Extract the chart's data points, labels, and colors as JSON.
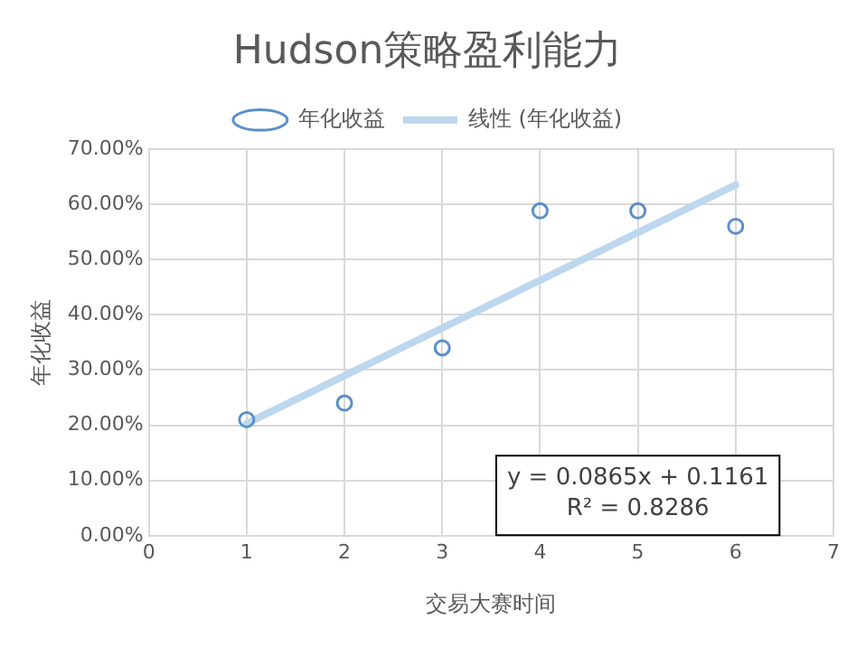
{
  "chart_data": {
    "type": "scatter",
    "title": "Hudson策略盈利能力",
    "xlabel": "交易大赛时间",
    "ylabel": "年化收益",
    "x": [
      1,
      2,
      3,
      4,
      5,
      6
    ],
    "series": [
      {
        "name": "年化收益",
        "color": "#5b8fc7",
        "marker": "circle",
        "values": [
          21.0,
          24.0,
          34.0,
          58.8,
          58.8,
          56.0
        ]
      },
      {
        "name": "线性 (年化收益)",
        "type": "line",
        "color": "#bdd7ee",
        "marker": "none",
        "x": [
          1,
          6
        ],
        "values": [
          20.3,
          63.5
        ]
      }
    ],
    "xlim": [
      0,
      7
    ],
    "xticks": [
      0,
      1,
      2,
      3,
      4,
      5,
      6,
      7
    ],
    "ylim": [
      0,
      70
    ],
    "yticks": [
      {
        "value": 0,
        "label": "0.00%"
      },
      {
        "value": 10,
        "label": "10.00%"
      },
      {
        "value": 20,
        "label": "20.00%"
      },
      {
        "value": 30,
        "label": "30.00%"
      },
      {
        "value": 40,
        "label": "40.00%"
      },
      {
        "value": 50,
        "label": "50.00%"
      },
      {
        "value": 60,
        "label": "60.00%"
      },
      {
        "value": 70,
        "label": "70.00%"
      }
    ],
    "annotations": [
      "y = 0.0865x + 0.1161",
      "R² = 0.8286"
    ],
    "grid": true,
    "legend": "top"
  }
}
